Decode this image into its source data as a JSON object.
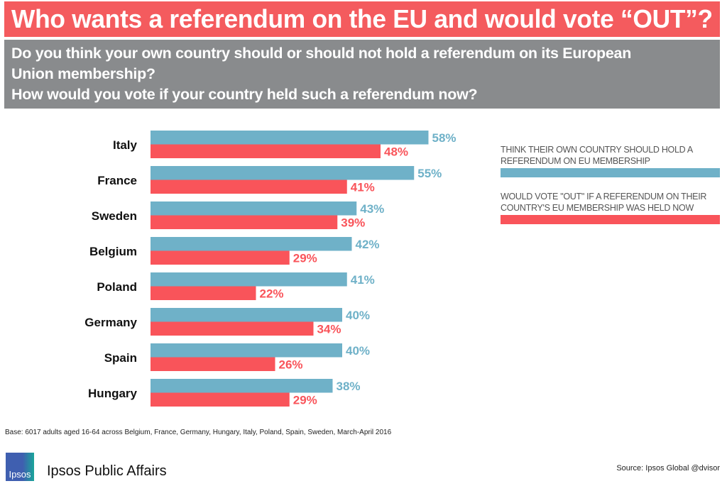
{
  "title": "Who wants a referendum on the EU and would vote “OUT”?",
  "subtitle_lines": [
    "Do you think your own country should or should not hold a referendum on its European",
    "Union membership?",
    "How would you vote if your country held such a referendum now?"
  ],
  "chart_data": {
    "type": "bar",
    "orientation": "horizontal",
    "categories": [
      "Italy",
      "France",
      "Sweden",
      "Belgium",
      "Poland",
      "Germany",
      "Spain",
      "Hungary"
    ],
    "series": [
      {
        "name": "THINK THEIR OWN COUNTRY SHOULD  HOLD A REFERENDUM ON  EU MEMBERSHIP",
        "color": "#6fb1c8",
        "values": [
          58,
          55,
          43,
          42,
          41,
          40,
          40,
          38
        ]
      },
      {
        "name": "WOULD VOTE \"OUT\"  IF A REFERENDUM ON THEIR COUNTRY'S EU MEMBERSHIP WAS HELD NOW",
        "color": "#f9545a",
        "values": [
          48,
          41,
          39,
          29,
          22,
          34,
          26,
          29
        ]
      }
    ],
    "value_suffix": "%",
    "xlim": [
      0,
      100
    ],
    "legend": "right"
  },
  "base": "Base: 6017 adults aged 16-64 across Belgium, France, Germany, Hungary, Italy, Poland, Spain, Sweden, March-April 2016",
  "logo_text": "Ipsos",
  "org": "Ipsos Public Affairs",
  "source": "Source: Ipsos Global @dvisor"
}
